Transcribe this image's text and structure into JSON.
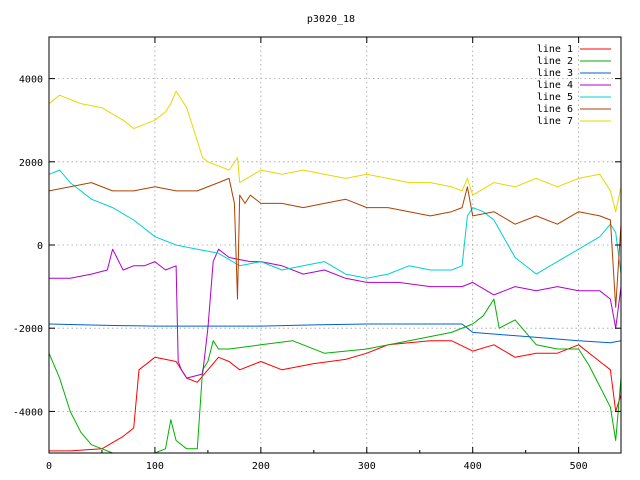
{
  "chart_data": {
    "type": "line",
    "title": "p3020_18",
    "xlabel": "",
    "ylabel": "",
    "xlim": [
      0,
      540
    ],
    "ylim": [
      -5000,
      5000
    ],
    "xticks": [
      0,
      100,
      200,
      300,
      400,
      500
    ],
    "yticks": [
      -4000,
      -2000,
      0,
      2000,
      4000
    ],
    "grid": true,
    "legend_position": "top-right",
    "series": [
      {
        "name": "line 1",
        "color": "#ff0000",
        "x": [
          0,
          20,
          50,
          70,
          80,
          85,
          100,
          120,
          130,
          140,
          150,
          160,
          170,
          180,
          200,
          220,
          250,
          280,
          300,
          320,
          340,
          360,
          380,
          400,
          420,
          440,
          460,
          480,
          500,
          520,
          530,
          535,
          540
        ],
        "y": [
          -4950,
          -4950,
          -4900,
          -4600,
          -4400,
          -3000,
          -2700,
          -2800,
          -3200,
          -3300,
          -3000,
          -2700,
          -2800,
          -3000,
          -2800,
          -3000,
          -2850,
          -2750,
          -2600,
          -2400,
          -2350,
          -2300,
          -2300,
          -2550,
          -2400,
          -2700,
          -2600,
          -2600,
          -2400,
          -2800,
          -3000,
          -4000,
          -3600
        ]
      },
      {
        "name": "line 2",
        "color": "#00b000",
        "x": [
          0,
          10,
          20,
          30,
          40,
          50,
          60,
          70,
          80,
          90,
          100,
          110,
          115,
          120,
          130,
          140,
          145,
          150,
          155,
          160,
          170,
          200,
          230,
          260,
          300,
          340,
          380,
          400,
          410,
          420,
          425,
          440,
          460,
          480,
          500,
          510,
          520,
          530,
          535,
          540
        ],
        "y": [
          -2600,
          -3200,
          -4000,
          -4500,
          -4800,
          -4900,
          -5000,
          -5000,
          -5000,
          -5000,
          -5000,
          -4900,
          -4200,
          -4700,
          -4900,
          -4900,
          -3000,
          -2800,
          -2300,
          -2500,
          -2500,
          -2400,
          -2300,
          -2600,
          -2500,
          -2300,
          -2100,
          -1900,
          -1700,
          -1300,
          -2000,
          -1800,
          -2400,
          -2500,
          -2500,
          -2900,
          -3400,
          -3900,
          -4700,
          -3200
        ]
      },
      {
        "name": "line 3",
        "color": "#0060d0",
        "x": [
          0,
          50,
          100,
          150,
          200,
          250,
          300,
          350,
          390,
          400,
          450,
          500,
          530,
          540
        ],
        "y": [
          -1900,
          -1930,
          -1950,
          -1950,
          -1950,
          -1920,
          -1900,
          -1900,
          -1900,
          -2100,
          -2200,
          -2300,
          -2350,
          -2300
        ]
      },
      {
        "name": "line 4",
        "color": "#b000d0",
        "x": [
          0,
          20,
          40,
          55,
          60,
          70,
          80,
          90,
          100,
          110,
          120,
          122,
          125,
          130,
          145,
          150,
          155,
          160,
          170,
          190,
          200,
          220,
          240,
          260,
          280,
          300,
          330,
          360,
          390,
          400,
          420,
          440,
          460,
          480,
          500,
          520,
          530,
          535,
          540
        ],
        "y": [
          -800,
          -800,
          -700,
          -600,
          -100,
          -600,
          -500,
          -500,
          -400,
          -600,
          -500,
          -2800,
          -3000,
          -3200,
          -3100,
          -2000,
          -400,
          -100,
          -300,
          -400,
          -400,
          -500,
          -700,
          -600,
          -800,
          -900,
          -900,
          -1000,
          -1000,
          -900,
          -1200,
          -1000,
          -1100,
          -1000,
          -1100,
          -1100,
          -1300,
          -2000,
          -1000
        ]
      },
      {
        "name": "line 5",
        "color": "#00d0d0",
        "x": [
          0,
          10,
          20,
          40,
          60,
          80,
          100,
          120,
          140,
          160,
          180,
          200,
          220,
          240,
          260,
          280,
          300,
          320,
          340,
          360,
          380,
          390,
          395,
          400,
          410,
          420,
          440,
          460,
          480,
          500,
          520,
          530,
          535,
          540
        ],
        "y": [
          1700,
          1800,
          1500,
          1100,
          900,
          600,
          200,
          0,
          -100,
          -200,
          -500,
          -400,
          -600,
          -500,
          -400,
          -700,
          -800,
          -700,
          -500,
          -600,
          -600,
          -500,
          700,
          900,
          800,
          600,
          -300,
          -700,
          -400,
          -100,
          200,
          500,
          300,
          -700
        ]
      },
      {
        "name": "line 6",
        "color": "#b04000",
        "x": [
          0,
          20,
          40,
          60,
          80,
          100,
          120,
          140,
          160,
          170,
          175,
          178,
          180,
          185,
          190,
          200,
          220,
          240,
          260,
          280,
          300,
          320,
          340,
          360,
          380,
          390,
          395,
          400,
          420,
          440,
          460,
          480,
          500,
          520,
          530,
          535,
          540
        ],
        "y": [
          1300,
          1400,
          1500,
          1300,
          1300,
          1400,
          1300,
          1300,
          1500,
          1600,
          1000,
          -1300,
          1200,
          1000,
          1200,
          1000,
          1000,
          900,
          1000,
          1100,
          900,
          900,
          800,
          700,
          800,
          900,
          1400,
          700,
          800,
          500,
          700,
          500,
          800,
          700,
          600,
          -1500,
          500
        ]
      },
      {
        "name": "line 7",
        "color": "#e6d800",
        "x": [
          0,
          10,
          30,
          50,
          70,
          80,
          100,
          110,
          115,
          120,
          130,
          140,
          145,
          150,
          170,
          178,
          180,
          200,
          220,
          240,
          260,
          280,
          300,
          320,
          340,
          360,
          380,
          390,
          395,
          400,
          420,
          440,
          460,
          480,
          500,
          520,
          530,
          535,
          540
        ],
        "y": [
          3400,
          3600,
          3400,
          3300,
          3000,
          2800,
          3000,
          3200,
          3400,
          3700,
          3300,
          2500,
          2100,
          2000,
          1800,
          2100,
          1500,
          1800,
          1700,
          1800,
          1700,
          1600,
          1700,
          1600,
          1500,
          1500,
          1400,
          1300,
          1600,
          1200,
          1500,
          1400,
          1600,
          1400,
          1600,
          1700,
          1300,
          800,
          1400
        ]
      }
    ]
  }
}
